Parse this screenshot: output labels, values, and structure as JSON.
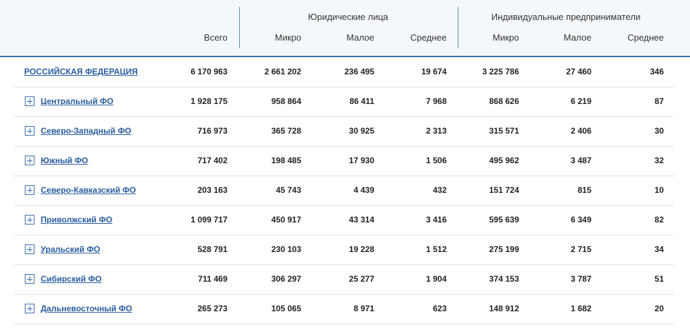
{
  "header": {
    "groups": [
      "Юридические лица",
      "Индивидуальные предприниматели"
    ],
    "columns": [
      "Всего",
      "Микро",
      "Малое",
      "Среднее",
      "Микро",
      "Малое",
      "Среднее"
    ]
  },
  "table": {
    "rows": [
      {
        "name": "РОССИЙСКАЯ ФЕДЕРАЦИЯ",
        "values": [
          "6 170 963",
          "2 661 202",
          "236 495",
          "19 674",
          "3 225 786",
          "27 460",
          "346"
        ]
      },
      {
        "name": "Центральный ФО",
        "values": [
          "1 928 175",
          "958 864",
          "86 411",
          "7 968",
          "868 626",
          "6 219",
          "87"
        ]
      },
      {
        "name": "Северо-Западный ФО",
        "values": [
          "716 973",
          "365 728",
          "30 925",
          "2 313",
          "315 571",
          "2 406",
          "30"
        ]
      },
      {
        "name": "Южный ФО",
        "values": [
          "717 402",
          "198 485",
          "17 930",
          "1 506",
          "495 962",
          "3 487",
          "32"
        ]
      },
      {
        "name": "Северо-Кавказский ФО",
        "values": [
          "203 163",
          "45 743",
          "4 439",
          "432",
          "151 724",
          "815",
          "10"
        ]
      },
      {
        "name": "Приволжский ФО",
        "values": [
          "1 099 717",
          "450 917",
          "43 314",
          "3 416",
          "595 639",
          "6 349",
          "82"
        ]
      },
      {
        "name": "Уральский ФО",
        "values": [
          "528 791",
          "230 103",
          "19 228",
          "1 512",
          "275 199",
          "2 715",
          "34"
        ]
      },
      {
        "name": "Сибирский ФО",
        "values": [
          "711 469",
          "306 297",
          "25 277",
          "1 904",
          "374 153",
          "3 787",
          "51"
        ]
      },
      {
        "name": "Дальневосточный ФО",
        "values": [
          "265 273",
          "105 065",
          "8 971",
          "623",
          "148 912",
          "1 682",
          "20"
        ]
      }
    ]
  }
}
